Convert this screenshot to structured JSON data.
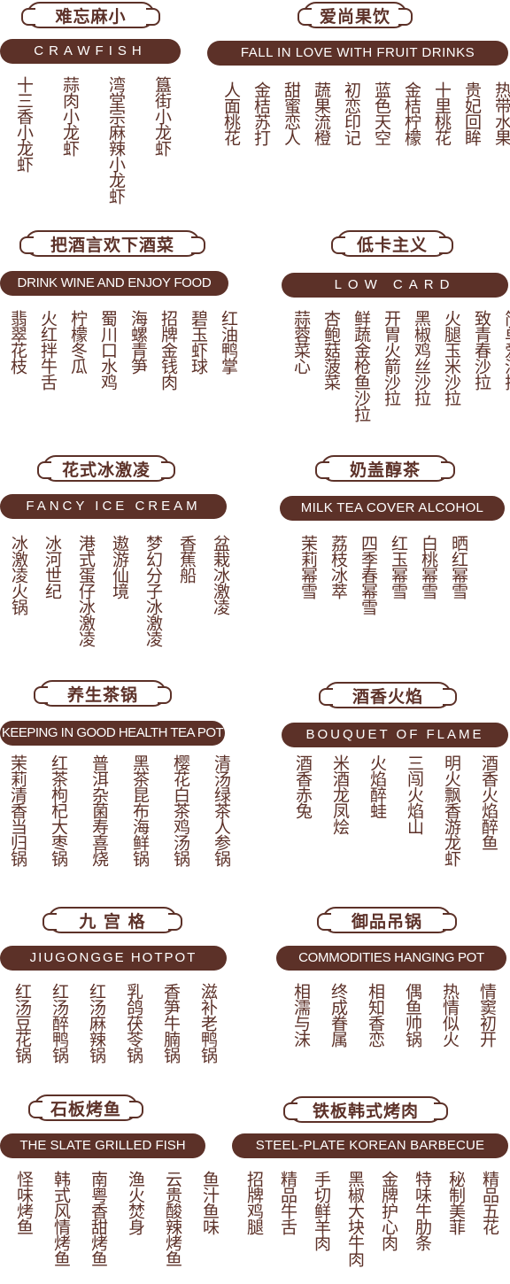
{
  "sections": [
    {
      "title": "难忘麻小",
      "subtitle": "CRAWFISH",
      "items": [
        "十三香小龙虾",
        "蒜肉小龙虾",
        "湾堂宗麻辣小龙虾",
        "簋街小龙虾"
      ]
    },
    {
      "title": "爱尚果饮",
      "subtitle": "FALL IN LOVE WITH FRUIT DRINKS",
      "items": [
        "人面桃花",
        "金桔苏打",
        "甜蜜恋人",
        "蔬果流橙",
        "初恋印记",
        "蓝色天空",
        "金桔柠檬",
        "十里桃花",
        "贵妃回眸",
        "热带水果"
      ]
    },
    {
      "title": "把酒言欢下酒菜",
      "subtitle": "DRINK WINE AND ENJOY FOOD",
      "items": [
        "翡翠花枝",
        "火红拌牛舌",
        "柠檬冬瓜",
        "蜀川口水鸡",
        "海螺青笋",
        "招牌金钱肉",
        "碧玉虾球",
        "红油鸭掌"
      ]
    },
    {
      "title": "低卡主义",
      "subtitle": "LOW   CARD",
      "items": [
        "蒜蓉菜心",
        "杏鲍菇菠菜",
        "鲜蔬金枪鱼沙拉",
        "开胃火箭沙拉",
        "黑椒鸡丝沙拉",
        "火腿玉米沙拉",
        "致青春沙拉",
        "简单爱沙拉"
      ]
    },
    {
      "title": "花式冰激凌",
      "subtitle": "FANCY ICE CREAM",
      "items": [
        "冰激凌火锅",
        "冰河世纪",
        "港式蛋仔冰激凌",
        "遨游仙境",
        "梦幻分子冰激凌",
        "香蕉船",
        "盆栽冰激凌"
      ]
    },
    {
      "title": "奶盖醇茶",
      "subtitle": "MILK TEA COVER ALCOHOL",
      "items": [
        "茉莉幂雪",
        "荔枝冰萃",
        "四季春幂雪",
        "红玉幂雪",
        "白桃幂雪",
        "晒红幂雪"
      ]
    },
    {
      "title": "养生茶锅",
      "subtitle": "KEEPING IN GOOD HEALTH TEA POT",
      "items": [
        "茉莉清香当归锅",
        "红茶枸杞大枣锅",
        "普洱杂菌寿喜烧",
        "黑茶昆布海鲜锅",
        "樱花白茶鸡汤锅",
        "清汤绿茶人参锅"
      ]
    },
    {
      "title": "酒香火焰",
      "subtitle": "BOUQUET OF FLAME",
      "items": [
        "酒香赤兔",
        "米酒龙凤烩",
        "火焰醉蛙",
        "三闯火焰山",
        "明火飘香游龙虾",
        "酒香火焰醉鱼"
      ]
    },
    {
      "title": "九 宫 格",
      "subtitle": "JIUGONGGE HOTPOT",
      "items": [
        "红汤豆花锅",
        "红汤醉鸭锅",
        "红汤麻辣锅",
        "乳鸽茯苓锅",
        "香笋牛腩锅",
        "滋补老鸭锅"
      ]
    },
    {
      "title": "御品吊锅",
      "subtitle": "COMMODITIES HANGING POT",
      "items": [
        "相濡与沫",
        "终成眷属",
        "相知香恋",
        "偶鱼帅锅",
        "热情似火",
        "情窦初开"
      ]
    },
    {
      "title": "石板烤鱼",
      "subtitle": "THE SLATE GRILLED FISH",
      "items": [
        "怪味烤鱼",
        "韩式风情烤鱼",
        "南粤香甜烤鱼",
        "渔火焚身",
        "云贵酸辣烤鱼",
        "鱼汁鱼味"
      ]
    },
    {
      "title": "铁板韩式烤肉",
      "subtitle": "STEEL-PLATE KOREAN BARBECUE",
      "items": [
        "招牌鸡腿",
        "精品牛舌",
        "手切鲜羊肉",
        "黑椒大块牛肉",
        "金牌护心肉",
        "特味牛肋条",
        "秘制美菲",
        "精品五花"
      ]
    }
  ]
}
